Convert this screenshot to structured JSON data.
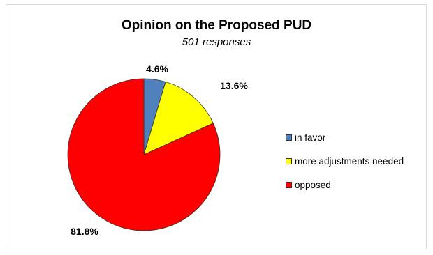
{
  "chart_data": {
    "type": "pie",
    "title": "Opinion on the Proposed PUD",
    "subtitle": "501 responses",
    "categories": [
      "in favor",
      "more adjustments needed",
      "opposed"
    ],
    "values": [
      4.6,
      13.6,
      81.8
    ],
    "data_labels": [
      "4.6%",
      "13.6%",
      "81.8%"
    ],
    "colors": [
      "#4F81BD",
      "#FFFF00",
      "#FF0000"
    ],
    "legend_position": "right"
  }
}
